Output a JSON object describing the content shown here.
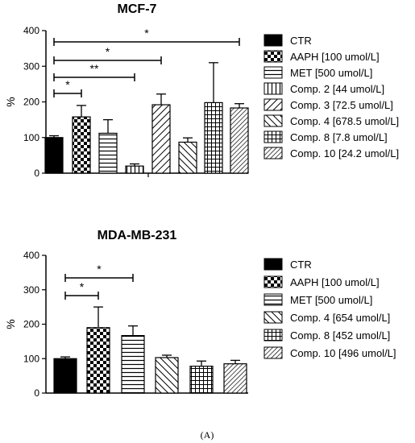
{
  "figure_caption": "(A)",
  "chart_data": [
    {
      "type": "bar",
      "title": "MCF-7",
      "ylabel": "%",
      "xlabel": "",
      "ylim": [
        0,
        400
      ],
      "yticks": [
        0,
        100,
        200,
        300,
        400
      ],
      "categories": [
        "CTR",
        "AAPH [100 umol/L]",
        "MET [500 umol/L]",
        "Comp. 2 [44 umol/L]",
        "Comp. 3 [72.5 umol/L]",
        "Comp. 4 [678.5 umol/L]",
        "Comp. 8 [7.8 umol/L]",
        "Comp. 10 [24.2 umol/L]"
      ],
      "values": [
        100,
        158,
        112,
        20,
        192,
        87,
        198,
        183
      ],
      "errors": [
        5,
        32,
        38,
        6,
        30,
        12,
        112,
        12
      ],
      "patterns": [
        "solid",
        "checker",
        "hlines",
        "vlines",
        "diag-right",
        "diag-left",
        "grid",
        "diag-dense"
      ],
      "significance": [
        {
          "from": 0,
          "to": 1,
          "label": "*"
        },
        {
          "from": 0,
          "to": 3,
          "label": "**"
        },
        {
          "from": 0,
          "to": 4,
          "label": "*"
        },
        {
          "from": 0,
          "to": 7,
          "label": "*"
        }
      ],
      "legend_position": "right"
    },
    {
      "type": "bar",
      "title": "MDA-MB-231",
      "ylabel": "%",
      "xlabel": "",
      "ylim": [
        0,
        400
      ],
      "yticks": [
        0,
        100,
        200,
        300,
        400
      ],
      "categories": [
        "CTR",
        "AAPH [100 umol/L]",
        "MET [500 umol/L]",
        "Comp. 4 [654 umol/L]",
        "Comp. 8 [452 umol/L]",
        "Comp. 10 [496 umol/L]"
      ],
      "values": [
        100,
        190,
        167,
        103,
        78,
        85
      ],
      "errors": [
        5,
        60,
        28,
        7,
        15,
        10
      ],
      "patterns": [
        "solid",
        "checker",
        "hlines",
        "diag-left",
        "grid",
        "diag-dense"
      ],
      "significance": [
        {
          "from": 0,
          "to": 1,
          "label": "*"
        },
        {
          "from": 0,
          "to": 2,
          "label": "*"
        }
      ],
      "legend_position": "right"
    }
  ]
}
